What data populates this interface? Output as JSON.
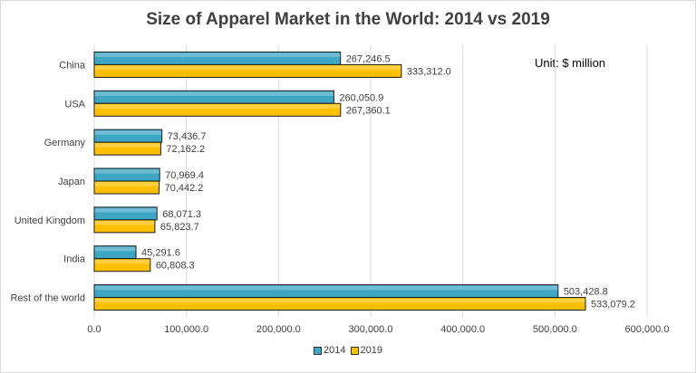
{
  "chart_data": {
    "type": "bar",
    "orientation": "horizontal",
    "title": "Size of Apparel Market in the World: 2014 vs 2019",
    "unit_note": "Unit: $ million",
    "categories": [
      "China",
      "USA",
      "Germany",
      "Japan",
      "United Kingdom",
      "India",
      "Rest of the world"
    ],
    "series": [
      {
        "name": "2014",
        "color": "#3CA6C4",
        "values": [
          267246.5,
          260050.9,
          73436.7,
          70969.4,
          68071.3,
          45291.6,
          503428.8
        ],
        "labels": [
          "267,246.5",
          "260,050.9",
          "73,436.7",
          "70,969.4",
          "68,071.3",
          "45,291.6",
          "503,428.8"
        ]
      },
      {
        "name": "2019",
        "color": "#FFC000",
        "values": [
          333312.0,
          267360.1,
          72162.2,
          70442.2,
          65823.7,
          60808.3,
          533079.2
        ],
        "labels": [
          "333,312.0",
          "267,360.1",
          "72,162.2",
          "70,442.2",
          "65,823.7",
          "60,808.3",
          "533,079.2"
        ]
      }
    ],
    "xlim": [
      0,
      600000
    ],
    "xticks": [
      0,
      100000,
      200000,
      300000,
      400000,
      500000,
      600000
    ],
    "xtick_labels": [
      "0.0",
      "100,000.0",
      "200,000.0",
      "300,000.0",
      "400,000.0",
      "500,000.0",
      "600,000.0"
    ],
    "grid": "vertical",
    "legend": "bottom"
  }
}
